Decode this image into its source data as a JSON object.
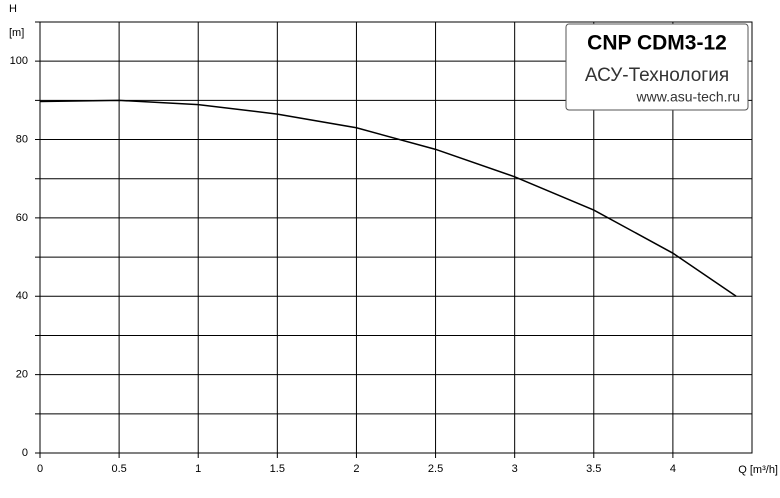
{
  "chart_data": {
    "type": "line",
    "y_label": "H",
    "y_unit": "[m]",
    "x_label": "Q [m³/h]",
    "brand": {
      "model": "CNP CDM3-12",
      "company": "АСУ-Технология",
      "site": "www.asu-tech.ru"
    },
    "x": [
      0,
      0.5,
      1,
      1.5,
      2,
      2.5,
      3,
      3.5,
      4,
      4.4
    ],
    "series": [
      {
        "color": "#000000",
        "values": [
          89.7,
          90,
          88.9,
          86.5,
          83,
          77.5,
          70.5,
          62,
          51,
          40
        ]
      }
    ],
    "xlim": [
      0,
      4.5
    ],
    "ylim": [
      0,
      110
    ],
    "xticks": [
      0,
      0.5,
      1,
      1.5,
      2,
      2.5,
      3,
      3.5,
      4
    ],
    "yticks": [
      0,
      20,
      40,
      60,
      80,
      100
    ],
    "y_minor_ticks": [
      10,
      30,
      50,
      70,
      90,
      110
    ],
    "grid": true
  }
}
